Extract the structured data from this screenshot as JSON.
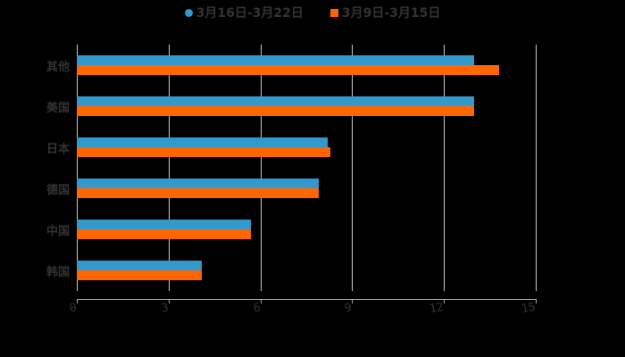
{
  "chart_data": {
    "type": "bar",
    "orientation": "horizontal",
    "title": "",
    "xlabel": "",
    "ylabel": "",
    "categories": [
      "其他",
      "美国",
      "日本",
      "德国",
      "中国",
      "韩国"
    ],
    "series": [
      {
        "name": "3月16日-3月22日",
        "color": "#3399cc",
        "values": [
          13.0,
          13.0,
          8.2,
          7.9,
          5.7,
          4.1
        ]
      },
      {
        "name": "3月9日-3月15日",
        "color": "#ff6600",
        "values": [
          13.8,
          13.0,
          8.3,
          7.9,
          5.7,
          4.1
        ]
      }
    ],
    "xlim": [
      0,
      15
    ],
    "xticks": [
      "0",
      "3",
      "6",
      "9",
      "12",
      "15"
    ],
    "grid": true,
    "legend_position": "top"
  },
  "legend": {
    "items": [
      {
        "label": "3月16日-3月22日",
        "color": "#3399cc",
        "shape": "circle"
      },
      {
        "label": "3月9日-3月15日",
        "color": "#ff6600",
        "shape": "square"
      }
    ]
  }
}
